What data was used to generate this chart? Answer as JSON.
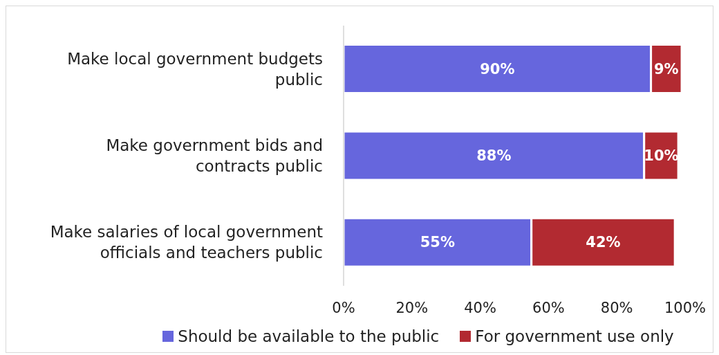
{
  "chart_data": {
    "type": "bar",
    "orientation": "horizontal",
    "stacked": true,
    "categories": [
      "Make local government budgets public",
      "Make government bids and contracts public",
      "Make salaries of local government officials and teachers public"
    ],
    "series": [
      {
        "name": "Should be available to the public",
        "color": "#6666dd",
        "values": [
          90,
          88,
          55
        ],
        "value_labels": [
          "90%",
          "88%",
          "55%"
        ]
      },
      {
        "name": "For government use only",
        "color": "#b22a31",
        "values": [
          9,
          10,
          42
        ],
        "value_labels": [
          "9%",
          "10%",
          "42%"
        ]
      }
    ],
    "xlim": [
      0,
      100
    ],
    "xticks": [
      {
        "value": 0,
        "label": "0%"
      },
      {
        "value": 20,
        "label": "20%"
      },
      {
        "value": 40,
        "label": "40%"
      },
      {
        "value": 60,
        "label": "60%"
      },
      {
        "value": 80,
        "label": "80%"
      },
      {
        "value": 100,
        "label": "100%"
      }
    ],
    "grid": false,
    "legend": "bottom"
  }
}
